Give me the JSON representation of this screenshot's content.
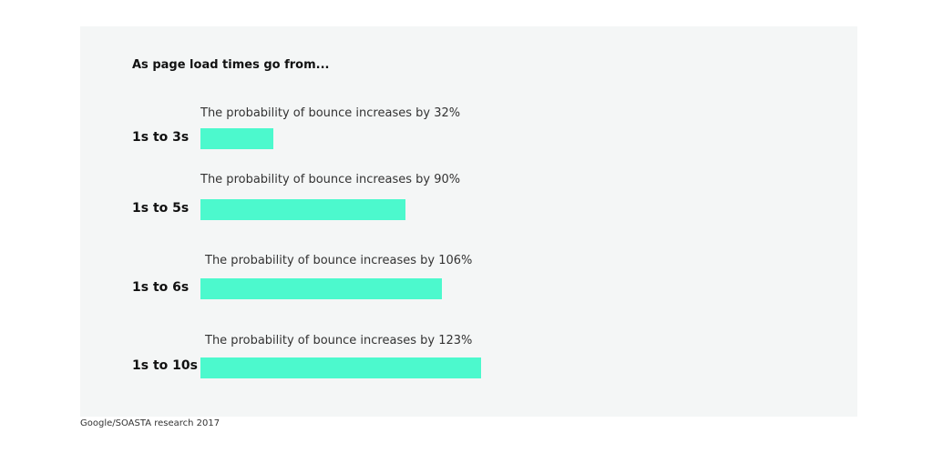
{
  "chart_data": {
    "type": "bar",
    "orientation": "horizontal",
    "title": "As page load times go from...",
    "categories": [
      "1s to 3s",
      "1s to 5s",
      "1s to 6s",
      "1s to 10s"
    ],
    "values": [
      32,
      90,
      106,
      123
    ],
    "annotations": [
      "The probability of bounce increases by 32%",
      "The probability of bounce increases by 90%",
      "The probability of bounce increases by 106%",
      "The probability of bounce increases by 123%"
    ],
    "unit": "%",
    "xlim": [
      0,
      200
    ],
    "grid": false,
    "bar_color": "#4cf9cd"
  },
  "colors": {
    "panel_background": "#f4f6f6",
    "bar": "#4cf9cd",
    "text": "#333333"
  },
  "source": "Google/SOASTA research 2017"
}
